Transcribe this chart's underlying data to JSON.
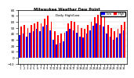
{
  "title": "Milwaukee Weather Dew Point",
  "subtitle": "Daily High/Low",
  "bar_width": 0.4,
  "high_color": "#ff0000",
  "low_color": "#0000ff",
  "background_color": "#ffffff",
  "plot_bg_color": "#ffffff",
  "ylim": [
    -10,
    80
  ],
  "yticks": [
    -10,
    0,
    10,
    20,
    30,
    40,
    50,
    60,
    70,
    80
  ],
  "high_values": [
    52,
    55,
    50,
    55,
    58,
    60,
    58,
    65,
    70,
    60,
    45,
    38,
    40,
    42,
    58,
    62,
    60,
    55,
    50,
    48,
    55,
    60,
    68,
    72,
    70,
    68,
    55,
    50,
    45,
    48,
    55,
    60
  ],
  "low_values": [
    38,
    40,
    36,
    42,
    45,
    48,
    44,
    52,
    55,
    46,
    30,
    22,
    25,
    28,
    44,
    48,
    46,
    42,
    36,
    34,
    40,
    46,
    54,
    58,
    55,
    52,
    40,
    36,
    30,
    34,
    40,
    46
  ],
  "labels": [
    "1",
    "2",
    "3",
    "4",
    "5",
    "6",
    "7",
    "8",
    "9",
    "10",
    "11",
    "12",
    "13",
    "14",
    "15",
    "16",
    "17",
    "18",
    "19",
    "20",
    "21",
    "22",
    "23",
    "24",
    "25",
    "26",
    "27",
    "28",
    "29",
    "30",
    "31",
    "32"
  ]
}
